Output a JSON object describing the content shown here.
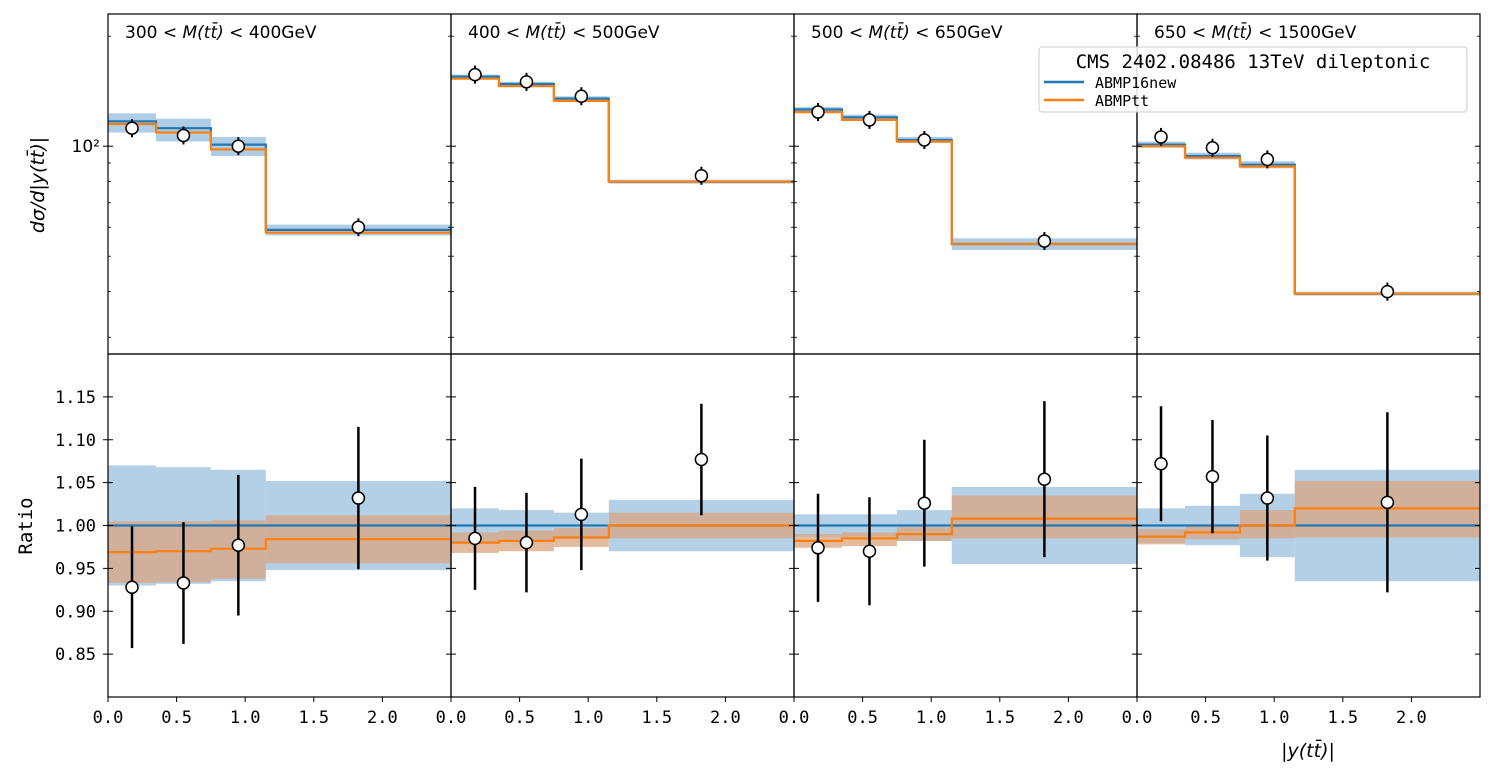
{
  "colors": {
    "abmp16new": "#1f77b4",
    "abmptt": "#ff7f0e",
    "band16": "#a6c8e2",
    "bandtt": "#d9a680"
  },
  "chart_data": {
    "type": "line",
    "description_title": "CMS 2402.08486 13TeV dileptonic",
    "legend": {
      "title": "CMS 2402.08486 13TeV dileptonic",
      "entries": [
        "ABMP16new",
        "ABMPtt"
      ],
      "location": "top-right"
    },
    "xlabel": "|y(tt̄)|",
    "top_ylabel": "dσ/d|y(tt̄)|",
    "bottom_ylabel": "Ratio",
    "xlim": [
      0.0,
      2.5
    ],
    "x_ticks": [
      "0.0",
      "0.5",
      "1.0",
      "1.5",
      "2.0"
    ],
    "top_yscale": "log",
    "top_ylim": [
      27,
      230
    ],
    "top_ytick_label": "10²",
    "bottom_ylim": [
      0.8,
      1.2
    ],
    "ratio_ticks": [
      "0.85",
      "0.90",
      "0.95",
      "1.00",
      "1.05",
      "1.10",
      "1.15"
    ],
    "bin_edges": [
      0.0,
      0.35,
      0.75,
      1.15,
      2.5
    ],
    "panels": [
      {
        "label_prefix": "300 < ",
        "label_var": "M(tt̄)",
        "label_suffix": " < 400GeV",
        "data_x": [
          0.175,
          0.55,
          0.95,
          1.825
        ],
        "data_y": [
          112,
          107,
          100,
          60
        ],
        "abmp16new": [
          117,
          112,
          101,
          59
        ],
        "abmptt": [
          115,
          109,
          98,
          58
        ],
        "band16_upper": [
          123,
          119,
          106,
          61
        ],
        "band16_lower": [
          109,
          103,
          94,
          57
        ],
        "ratio_points": [
          0.928,
          0.933,
          0.977,
          1.032
        ],
        "ratio_errors": [
          0.071,
          0.071,
          0.082,
          0.083
        ],
        "ratio_tt": [
          0.969,
          0.97,
          0.973,
          0.984
        ],
        "band16_ratio_upper": [
          1.07,
          1.068,
          1.065,
          1.052
        ],
        "band16_ratio_lower": [
          0.93,
          0.932,
          0.935,
          0.948
        ],
        "bandtt_ratio_upper": [
          1.005,
          1.005,
          1.006,
          1.012
        ],
        "bandtt_ratio_lower": [
          0.933,
          0.934,
          0.938,
          0.956
        ]
      },
      {
        "label_prefix": "400 < ",
        "label_var": "M(tt̄)",
        "label_suffix": " < 500GeV",
        "data_x": [
          0.175,
          0.55,
          0.95,
          1.825
        ],
        "data_y": [
          157,
          150,
          137,
          83
        ],
        "abmp16new": [
          155,
          148,
          135,
          80
        ],
        "abmptt": [
          153,
          146,
          133,
          80
        ],
        "band16_upper": [
          157,
          150,
          137,
          81
        ],
        "band16_lower": [
          153,
          146,
          133,
          79
        ],
        "ratio_points": [
          0.985,
          0.98,
          1.013,
          1.077
        ],
        "ratio_errors": [
          0.06,
          0.058,
          0.065,
          0.065
        ],
        "ratio_tt": [
          0.98,
          0.982,
          0.986,
          1.0
        ],
        "band16_ratio_upper": [
          1.02,
          1.018,
          1.015,
          1.03
        ],
        "band16_ratio_lower": [
          0.98,
          0.982,
          0.985,
          0.97
        ],
        "bandtt_ratio_upper": [
          0.992,
          0.994,
          0.997,
          1.015
        ],
        "bandtt_ratio_lower": [
          0.968,
          0.97,
          0.975,
          0.985
        ]
      },
      {
        "label_prefix": "500 < ",
        "label_var": "M(tt̄)",
        "label_suffix": " < 650GeV",
        "data_x": [
          0.175,
          0.55,
          0.95,
          1.825
        ],
        "data_y": [
          124,
          118,
          104,
          55
        ],
        "abmp16new": [
          126,
          120,
          104,
          54
        ],
        "abmptt": [
          124,
          118,
          103,
          54
        ],
        "band16_upper": [
          128,
          122,
          106,
          56
        ],
        "band16_lower": [
          124,
          118,
          102,
          52
        ],
        "ratio_points": [
          0.974,
          0.97,
          1.026,
          1.054
        ],
        "ratio_errors": [
          0.063,
          0.063,
          0.074,
          0.091
        ],
        "ratio_tt": [
          0.982,
          0.985,
          0.99,
          1.008
        ],
        "band16_ratio_upper": [
          1.013,
          1.013,
          1.018,
          1.045
        ],
        "band16_ratio_lower": [
          0.987,
          0.987,
          0.982,
          0.955
        ],
        "bandtt_ratio_upper": [
          0.99,
          0.992,
          0.998,
          1.035
        ],
        "bandtt_ratio_lower": [
          0.974,
          0.976,
          0.982,
          0.985
        ]
      },
      {
        "label_prefix": "650 < ",
        "label_var": "M(tt̄)",
        "label_suffix": " < 1500GeV",
        "data_x": [
          0.175,
          0.55,
          0.95,
          1.825
        ],
        "data_y": [
          106,
          99,
          92,
          40
        ],
        "abmp16new": [
          101,
          94,
          89,
          39.5
        ],
        "abmptt": [
          100,
          93,
          88,
          39.5
        ],
        "band16_upper": [
          103,
          96,
          91,
          40
        ],
        "band16_lower": [
          99,
          92,
          87,
          39
        ],
        "ratio_points": [
          1.072,
          1.057,
          1.032,
          1.027
        ],
        "ratio_errors": [
          0.067,
          0.066,
          0.073,
          0.105
        ],
        "ratio_tt": [
          0.987,
          0.992,
          1.0,
          1.02
        ],
        "band16_ratio_upper": [
          1.02,
          1.023,
          1.037,
          1.065
        ],
        "band16_ratio_lower": [
          0.98,
          0.977,
          0.963,
          0.935
        ],
        "bandtt_ratio_upper": [
          0.996,
          1.0,
          1.018,
          1.052
        ],
        "bandtt_ratio_lower": [
          0.978,
          0.984,
          0.985,
          0.986
        ]
      }
    ]
  }
}
